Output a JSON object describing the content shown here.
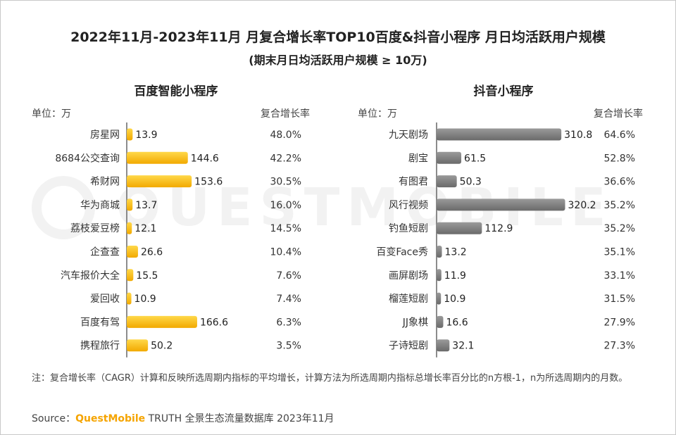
{
  "title": "2022年11月-2023年11月 月复合增长率TOP10百度&抖音小程序 月日均活跃用户规模",
  "subtitle": "(期末月日均活跃用户规模 ≥ 10万)",
  "watermark": "QUESTMOBILE",
  "footnote": "注：复合增长率（CAGR）计算和反映所选周期内指标的平均增长，计算方法为所选周期内指标总增长率百分比的n方根-1，n为所选周期内的月数。",
  "source": {
    "prefix": "Source：",
    "brand": "QuestMobile",
    "rest": " TRUTH 全景生态流量数据库 2023年11月"
  },
  "colors": {
    "baidu_bar": "#f7b800",
    "douyin_bar": "#808080",
    "axis": "#666666"
  },
  "chart_data": [
    {
      "type": "bar",
      "orientation": "horizontal",
      "title": "百度智能小程序",
      "unit_label": "单位：万",
      "rate_header": "复合增长率",
      "categories": [
        "房星网",
        "8684公交查询",
        "希财网",
        "华为商城",
        "荔枝爱豆榜",
        "企查查",
        "汽车报价大全",
        "爱回收",
        "百度有驾",
        "携程旅行"
      ],
      "values": [
        13.9,
        144.6,
        153.6,
        13.7,
        12.1,
        26.6,
        15.5,
        10.9,
        166.6,
        50.2
      ],
      "value_labels": [
        "13.9",
        "144.6",
        "153.6",
        "13.7",
        "12.1",
        "26.6",
        "15.5",
        "10.9",
        "166.6",
        "50.2"
      ],
      "growth_rates": [
        "48.0%",
        "42.2%",
        "30.5%",
        "16.0%",
        "14.5%",
        "10.4%",
        "7.6%",
        "7.4%",
        "6.3%",
        "3.5%"
      ]
    },
    {
      "type": "bar",
      "orientation": "horizontal",
      "title": "抖音小程序",
      "unit_label": "单位：万",
      "rate_header": "复合增长率",
      "categories": [
        "九天剧场",
        "剧宝",
        "有图君",
        "风行视频",
        "钓鱼短剧",
        "百变Face秀",
        "画屏剧场",
        "榴莲短剧",
        "JJ象棋",
        "子诗短剧"
      ],
      "values": [
        310.8,
        61.5,
        50.3,
        320.2,
        112.9,
        13.2,
        11.9,
        10.9,
        16.6,
        32.1
      ],
      "value_labels": [
        "310.8",
        "61.5",
        "50.3",
        "320.2",
        "112.9",
        "13.2",
        "11.9",
        "10.9",
        "16.6",
        "32.1"
      ],
      "growth_rates": [
        "64.6%",
        "52.8%",
        "36.6%",
        "35.2%",
        "35.2%",
        "35.1%",
        "33.1%",
        "31.5%",
        "27.9%",
        "27.3%"
      ]
    }
  ]
}
